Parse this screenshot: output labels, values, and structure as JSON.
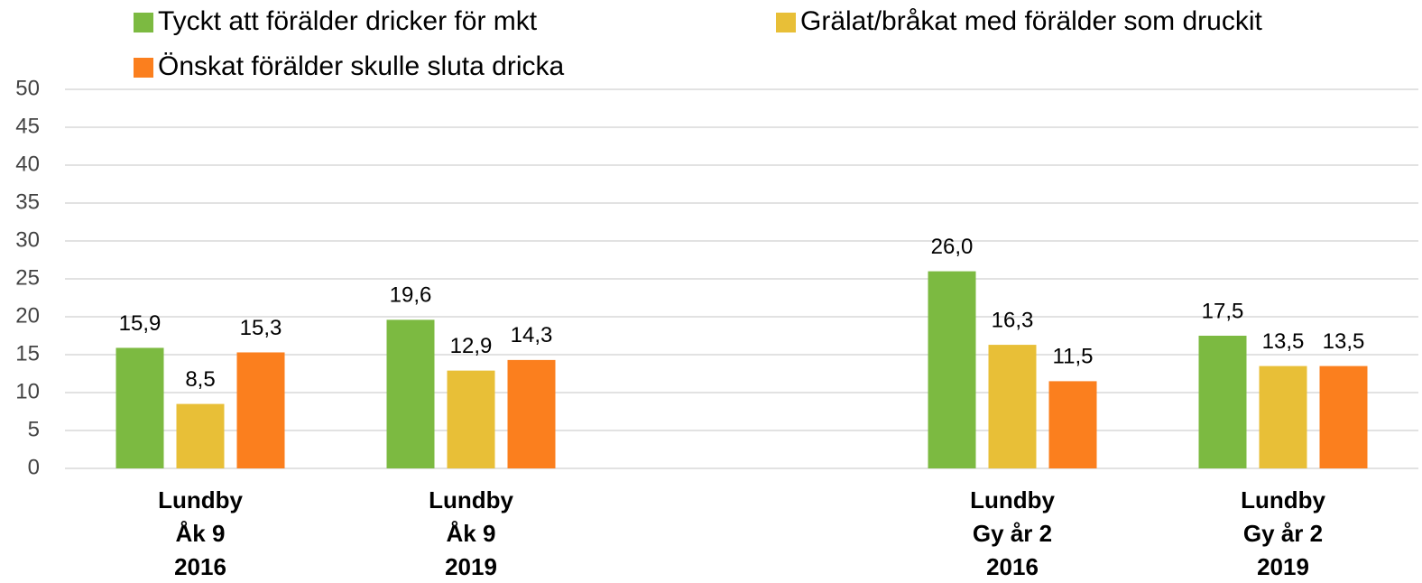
{
  "chart_data": {
    "type": "bar",
    "categories": [
      [
        "Lundby",
        "Åk 9",
        "2016"
      ],
      [
        "Lundby",
        "Åk 9",
        "2019"
      ],
      null,
      [
        "Lundby",
        "Gy år 2",
        "2016"
      ],
      [
        "Lundby",
        "Gy år 2",
        "2019"
      ]
    ],
    "series": [
      {
        "name": "Tyckt att förälder dricker för mkt",
        "color": "#7cba41",
        "values": [
          15.9,
          19.6,
          null,
          26.0,
          17.5
        ],
        "value_labels": [
          "15,9",
          "19,6",
          null,
          "26,0",
          "17,5"
        ]
      },
      {
        "name": "Grälat/bråkat med förälder som druckit",
        "color": "#e8bf37",
        "values": [
          8.5,
          12.9,
          null,
          16.3,
          13.5
        ],
        "value_labels": [
          "8,5",
          "12,9",
          null,
          "16,3",
          "13,5"
        ]
      },
      {
        "name": "Önskat förälder skulle sluta dricka",
        "color": "#fb7f1e",
        "values": [
          15.3,
          14.3,
          null,
          11.5,
          13.5
        ],
        "value_labels": [
          "15,3",
          "14,3",
          null,
          "11,5",
          "13,5"
        ]
      }
    ],
    "ylim": [
      0,
      50
    ],
    "yticks": [
      0,
      5,
      10,
      15,
      20,
      25,
      30,
      35,
      40,
      45,
      50
    ],
    "grid": true,
    "legend": "top"
  }
}
